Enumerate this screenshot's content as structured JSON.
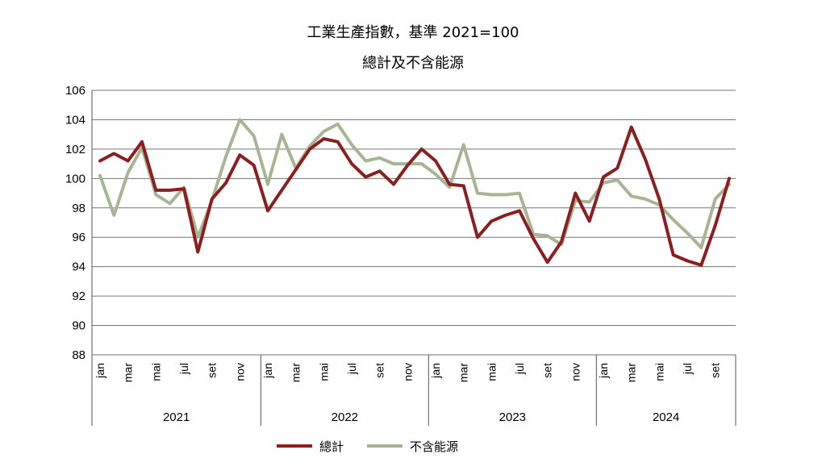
{
  "chart_data": {
    "type": "line",
    "title": "工業生產指數，基準 2021=100",
    "subtitle": "總計及不含能源",
    "ylim": [
      88,
      106
    ],
    "yticks": [
      88,
      90,
      92,
      94,
      96,
      98,
      100,
      102,
      104,
      106
    ],
    "grid": true,
    "legend_position": "bottom-center",
    "x_month_labels": [
      "jan",
      "mar",
      "mai",
      "jul",
      "set",
      "nov"
    ],
    "years": [
      "2021",
      "2022",
      "2023",
      "2024"
    ],
    "months_per_year": [
      12,
      12,
      12,
      10
    ],
    "series": [
      {
        "name": "總計",
        "color": "#8b1e1e",
        "values": [
          101.2,
          101.7,
          101.2,
          102.5,
          99.2,
          99.2,
          99.3,
          95.0,
          98.6,
          99.7,
          101.6,
          100.9,
          97.8,
          99.2,
          100.6,
          102.0,
          102.7,
          102.5,
          101.0,
          100.1,
          100.5,
          99.6,
          100.9,
          102.0,
          101.2,
          99.6,
          99.5,
          96.0,
          97.1,
          97.5,
          97.8,
          95.9,
          94.3,
          95.7,
          99.0,
          97.1,
          100.1,
          100.7,
          103.5,
          101.3,
          98.6,
          94.8,
          94.4,
          94.1,
          96.8,
          100.0
        ]
      },
      {
        "name": "不含能源",
        "color": "#a7b594",
        "values": [
          100.2,
          97.5,
          100.4,
          102.1,
          98.9,
          98.3,
          99.4,
          96.0,
          98.5,
          101.5,
          104.0,
          102.9,
          99.6,
          103.0,
          100.7,
          102.2,
          103.2,
          103.7,
          102.3,
          101.2,
          101.4,
          101.0,
          101.0,
          101.0,
          100.3,
          99.4,
          102.3,
          99.0,
          98.9,
          98.9,
          99.0,
          96.2,
          96.1,
          95.5,
          98.5,
          98.4,
          99.7,
          99.9,
          98.8,
          98.6,
          98.2,
          97.2,
          96.3,
          95.3,
          98.6,
          99.6
        ]
      }
    ]
  }
}
